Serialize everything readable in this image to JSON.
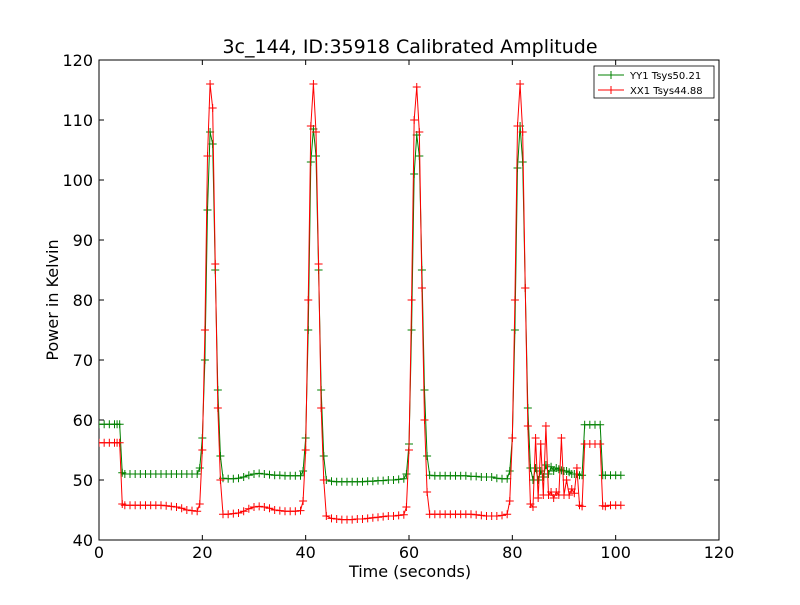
{
  "chart_data": {
    "type": "line",
    "title": "3c_144, ID:35918 Calibrated Amplitude",
    "xlabel": "Time (seconds)",
    "ylabel": "Power in Kelvin",
    "xlim": [
      0,
      120
    ],
    "ylim": [
      40,
      120
    ],
    "xticks": [
      0,
      20,
      40,
      60,
      80,
      100,
      120
    ],
    "yticks": [
      40,
      50,
      60,
      70,
      80,
      90,
      100,
      110,
      120
    ],
    "grid": false,
    "legend_position": "top-right",
    "marker": "+",
    "series": [
      {
        "name": "YY1 Tsys50.21",
        "color": "#008000",
        "x": [
          0,
          1,
          2,
          3,
          3.5,
          4,
          4.5,
          5,
          6,
          7,
          8,
          9,
          10,
          11,
          12,
          13,
          14,
          15,
          16,
          17,
          18,
          19,
          19.5,
          20,
          20.5,
          21,
          21.5,
          22,
          22.5,
          23,
          23.5,
          24,
          25,
          26,
          27,
          28,
          29,
          30,
          31,
          32,
          33,
          34,
          35,
          36,
          37,
          38,
          39,
          39.5,
          40,
          40.5,
          41,
          41.5,
          42,
          42.5,
          43,
          43.5,
          44,
          45,
          46,
          47,
          48,
          49,
          50,
          51,
          52,
          53,
          54,
          55,
          56,
          57,
          58,
          59,
          59.5,
          60,
          60.5,
          61,
          61.5,
          62,
          62.5,
          63,
          63.5,
          64,
          65,
          66,
          67,
          68,
          69,
          70,
          71,
          72,
          73,
          74,
          75,
          76,
          77,
          78,
          79,
          79.5,
          80,
          80.5,
          81,
          81.5,
          82,
          82.5,
          83,
          83.5,
          84,
          84.5,
          85,
          85.5,
          86,
          86.5,
          87,
          87.5,
          88,
          88.5,
          89,
          89.5,
          90,
          90.5,
          91,
          91.5,
          92,
          92.5,
          93,
          93.5,
          94,
          95,
          96,
          97,
          97.5,
          98,
          99,
          100,
          101
        ],
        "y": [
          59.3,
          59.3,
          59.3,
          59.3,
          59.3,
          59.3,
          51.2,
          51.0,
          51.0,
          51.0,
          51.0,
          51.0,
          51.0,
          51.0,
          51.0,
          51.0,
          51.0,
          51.0,
          51.0,
          51.0,
          51.0,
          51.0,
          52.0,
          57.0,
          70.0,
          95.0,
          108.0,
          106.0,
          85.0,
          65.0,
          54.0,
          50.3,
          50.2,
          50.2,
          50.3,
          50.5,
          50.8,
          51.0,
          51.1,
          51.0,
          50.9,
          50.8,
          50.8,
          50.7,
          50.7,
          50.7,
          50.7,
          51.5,
          57.0,
          75.0,
          103.0,
          108.5,
          104.0,
          85.0,
          65.0,
          54.0,
          50.0,
          49.8,
          49.7,
          49.7,
          49.7,
          49.7,
          49.7,
          49.7,
          49.8,
          49.8,
          49.9,
          49.9,
          50.0,
          50.0,
          50.1,
          50.2,
          51.0,
          56.0,
          75.0,
          101.0,
          107.5,
          104.0,
          85.0,
          65.0,
          54.0,
          50.8,
          50.7,
          50.7,
          50.7,
          50.7,
          50.7,
          50.7,
          50.7,
          50.6,
          50.6,
          50.5,
          50.5,
          50.5,
          50.3,
          50.2,
          50.2,
          51.5,
          57.0,
          75.0,
          102.0,
          109.0,
          103.0,
          82.0,
          62.0,
          52.0,
          50.0,
          52.0,
          50.0,
          51.5,
          50.5,
          52.5,
          51.0,
          52.2,
          51.5,
          52.0,
          51.8,
          51.6,
          51.5,
          51.5,
          51.3,
          51.0,
          51.0,
          51.0,
          50.8,
          50.8,
          59.2,
          59.2,
          59.2,
          59.2,
          50.8,
          50.8,
          50.8,
          50.8,
          50.8
        ]
      },
      {
        "name": "XX1 Tsys44.88",
        "color": "#ff0000",
        "x": [
          0,
          1,
          2,
          3,
          3.5,
          4,
          4.5,
          5,
          6,
          7,
          8,
          9,
          10,
          11,
          12,
          13,
          14,
          15,
          16,
          17,
          18,
          19,
          19.5,
          20,
          20.5,
          21,
          21.5,
          22,
          22.5,
          23,
          23.5,
          24,
          25,
          26,
          27,
          28,
          29,
          30,
          31,
          32,
          33,
          34,
          35,
          36,
          37,
          38,
          39,
          39.5,
          40,
          40.5,
          41,
          41.5,
          42,
          42.5,
          43,
          43.5,
          44,
          45,
          46,
          47,
          48,
          49,
          50,
          51,
          52,
          53,
          54,
          55,
          56,
          57,
          58,
          59,
          59.5,
          60,
          60.5,
          61,
          61.5,
          62,
          62.5,
          63,
          63.5,
          64,
          65,
          66,
          67,
          68,
          69,
          70,
          71,
          72,
          73,
          74,
          75,
          76,
          77,
          78,
          79,
          79.5,
          80,
          80.5,
          81,
          81.5,
          82,
          82.5,
          83,
          83.5,
          84,
          84.5,
          85,
          85.5,
          86,
          86.5,
          87,
          87.5,
          88,
          88.5,
          89,
          89.5,
          90,
          90.5,
          91,
          91.5,
          92,
          92.5,
          93,
          93.5,
          94,
          95,
          96,
          97,
          97.5,
          98,
          99,
          100,
          101
        ],
        "y": [
          56.2,
          56.2,
          56.2,
          56.2,
          56.2,
          56.2,
          46.0,
          45.8,
          45.8,
          45.8,
          45.8,
          45.8,
          45.8,
          45.8,
          45.8,
          45.7,
          45.6,
          45.5,
          45.3,
          45.0,
          44.9,
          44.8,
          46.0,
          55.0,
          75.0,
          104.0,
          116.0,
          112.0,
          86.0,
          62.0,
          50.0,
          44.3,
          44.3,
          44.4,
          44.5,
          44.8,
          45.2,
          45.5,
          45.6,
          45.5,
          45.3,
          45.0,
          44.9,
          44.8,
          44.8,
          44.8,
          44.9,
          46.5,
          55.0,
          80.0,
          109.0,
          116.0,
          108.0,
          86.0,
          62.0,
          50.0,
          44.0,
          43.6,
          43.5,
          43.4,
          43.4,
          43.4,
          43.5,
          43.5,
          43.6,
          43.7,
          43.8,
          43.9,
          44.0,
          44.0,
          44.1,
          44.2,
          45.5,
          55.0,
          80.0,
          110.0,
          115.5,
          108.0,
          82.0,
          60.0,
          48.0,
          44.3,
          44.3,
          44.3,
          44.3,
          44.3,
          44.3,
          44.3,
          44.3,
          44.3,
          44.2,
          44.1,
          44.0,
          44.0,
          44.0,
          44.1,
          44.3,
          46.5,
          57.0,
          80.0,
          109.0,
          116.0,
          108.0,
          82.0,
          59.0,
          46.0,
          45.5,
          57.0,
          47.0,
          56.0,
          47.5,
          59.0,
          47.5,
          48.0,
          47.0,
          48.0,
          47.5,
          57.0,
          47.5,
          50.0,
          47.5,
          48.5,
          47.8,
          52.0,
          45.8,
          45.6,
          56.0,
          56.0,
          56.0,
          56.0,
          45.7,
          45.6,
          45.8,
          45.8,
          45.8
        ]
      }
    ]
  }
}
